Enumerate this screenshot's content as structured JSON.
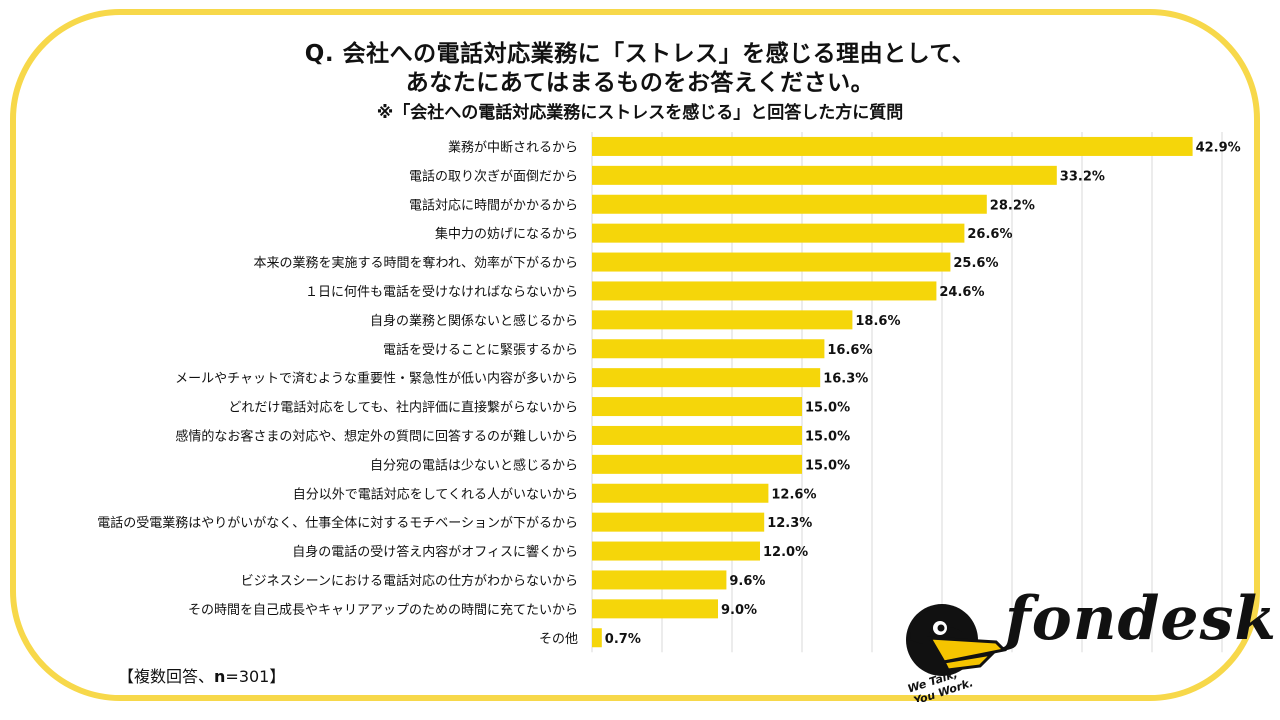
{
  "header": {
    "title_line1": "Q. 会社への電話対応業務に「ストレス」を感じる理由として、",
    "title_line2": "あなたにあてはまるものをお答えください。",
    "subtitle": "※「会社への電話対応業務にストレスを感じる」と回答した方に質問"
  },
  "footnote": {
    "prefix": "【複数回答、",
    "n_label": "n",
    "n_value": "=301】"
  },
  "logo": {
    "brand": "fondesk",
    "tagline_line1": "We Talk,",
    "tagline_line2": "You Work.",
    "icon": "pelican-icon"
  },
  "colors": {
    "bar": "#f5d60a",
    "frame": "#f7d84a",
    "grid": "#d9d9d9"
  },
  "chart_data": {
    "type": "bar",
    "orientation": "horizontal",
    "value_suffix": "%",
    "grid": true,
    "xlim": [
      0,
      45
    ],
    "categories": [
      "業務が中断されるから",
      "電話の取り次ぎが面倒だから",
      "電話対応に時間がかかるから",
      "集中力の妨げになるから",
      "本来の業務を実施する時間を奪われ、効率が下がるから",
      "１日に何件も電話を受けなければならないから",
      "自身の業務と関係ないと感じるから",
      "電話を受けることに緊張するから",
      "メールやチャットで済むような重要性・緊急性が低い内容が多いから",
      "どれだけ電話対応をしても、社内評価に直接繋がらないから",
      "感情的なお客さまの対応や、想定外の質問に回答するのが難しいから",
      "自分宛の電話は少ないと感じるから",
      "自分以外で電話対応をしてくれる人がいないから",
      "電話の受電業務はやりがいがなく、仕事全体に対するモチベーションが下がるから",
      "自身の電話の受け答え内容がオフィスに響くから",
      "ビジネスシーンにおける電話対応の仕方がわからないから",
      "その時間を自己成長やキャリアアップのための時間に充てたいから",
      "その他"
    ],
    "values": [
      42.9,
      33.2,
      28.2,
      26.6,
      25.6,
      24.6,
      18.6,
      16.6,
      16.3,
      15.0,
      15.0,
      15.0,
      12.6,
      12.3,
      12.0,
      9.6,
      9.0,
      0.7
    ],
    "labels": [
      "42.9%",
      "33.2%",
      "28.2%",
      "26.6%",
      "25.6%",
      "24.6%",
      "18.6%",
      "16.6%",
      "16.3%",
      "15.0%",
      "15.0%",
      "15.0%",
      "12.6%",
      "12.3%",
      "12.0%",
      "9.6%",
      "9.0%",
      "0.7%"
    ]
  }
}
